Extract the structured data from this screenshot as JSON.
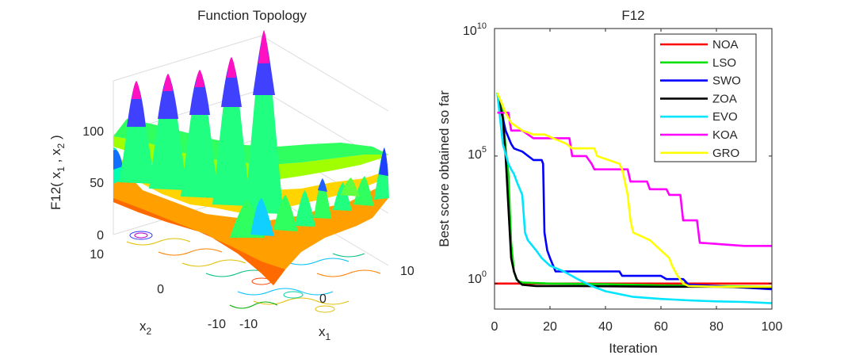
{
  "chart_data": [
    {
      "type": "surface",
      "title": "Function Topology",
      "xlabel": "x",
      "xlabel_sub": "1",
      "ylabel": "x",
      "ylabel_sub": "2",
      "zlabel": "F12( x , x )",
      "zlabel_sub1": "1",
      "zlabel_sub2": "2",
      "x_ticks": [
        "-10",
        "0",
        "10"
      ],
      "y_ticks": [
        "10",
        "0",
        "-10"
      ],
      "z_ticks": [
        "0",
        "50",
        "100"
      ],
      "xlim": [
        -10,
        10
      ],
      "ylim": [
        -10,
        10
      ],
      "zlim": [
        0,
        150
      ],
      "colormap": "hsv",
      "contour_projection": true
    },
    {
      "type": "line",
      "title": "F12",
      "xlabel": "Iteration",
      "ylabel": "Best score obtained so far",
      "yscale": "log",
      "xlim": [
        0,
        100
      ],
      "ylim": [
        0.1,
        10000000000
      ],
      "x_ticks": [
        "0",
        "20",
        "40",
        "60",
        "80",
        "100"
      ],
      "y_ticks": [
        {
          "base": "10",
          "exp": "0",
          "value": 1
        },
        {
          "base": "10",
          "exp": "5",
          "value": 100000
        },
        {
          "base": "10",
          "exp": "10",
          "value": 10000000000
        }
      ],
      "legend_position": "top-right",
      "series": [
        {
          "name": "NOA",
          "color": "#ff0000",
          "x": [
            0,
            100
          ],
          "y": [
            1.0,
            1.0
          ]
        },
        {
          "name": "LSO",
          "color": "#00e000",
          "x": [
            1,
            3,
            4,
            5,
            6,
            7,
            8,
            9,
            10,
            20,
            40,
            60,
            80,
            100
          ],
          "y": [
            30000000,
            5000000,
            200000,
            20000,
            40,
            3,
            1.4,
            1.2,
            1.1,
            1.0,
            0.95,
            0.85,
            0.8,
            0.75
          ]
        },
        {
          "name": "SWO",
          "color": "#0000ff",
          "x": [
            1,
            4,
            6,
            7,
            8,
            10,
            14,
            15,
            17,
            17.5,
            18,
            19,
            20,
            22,
            40,
            45,
            46,
            60,
            62,
            68,
            70,
            80,
            100
          ],
          "y": [
            30000000,
            1000000,
            300000,
            200000,
            180000,
            150000,
            70000,
            70000,
            70000,
            50000,
            100,
            20,
            10,
            3,
            3,
            3,
            2,
            2,
            1.5,
            1.5,
            0.9,
            0.8,
            0.6
          ]
        },
        {
          "name": "ZOA",
          "color": "#000000",
          "x": [
            1,
            3,
            4,
            5,
            6,
            7,
            8,
            9,
            10,
            15,
            30,
            60,
            80,
            100
          ],
          "y": [
            30000000,
            3000000,
            100000,
            1000,
            10,
            3,
            1.5,
            1.1,
            0.9,
            0.8,
            0.8,
            0.75,
            0.75,
            0.7
          ]
        },
        {
          "name": "EVO",
          "color": "#00e5ff",
          "x": [
            1,
            3,
            5,
            6,
            7,
            8,
            10,
            11,
            12,
            15,
            17,
            20,
            25,
            30,
            35,
            40,
            50,
            60,
            70,
            80,
            90,
            100
          ],
          "y": [
            30000000,
            300000,
            50000,
            30000,
            20000,
            10000,
            3000,
            100,
            50,
            20,
            10,
            5,
            3,
            1.5,
            0.8,
            0.5,
            0.3,
            0.25,
            0.22,
            0.2,
            0.19,
            0.17
          ]
        },
        {
          "name": "KOA",
          "color": "#ff00ff",
          "x": [
            1,
            5,
            6,
            10,
            14,
            18,
            27,
            28,
            33,
            35,
            36,
            48,
            49,
            55,
            56,
            62,
            63,
            67,
            68,
            73,
            74,
            90,
            100
          ],
          "y": [
            5000000,
            5000000,
            1000000,
            1000000,
            500000,
            500000,
            500000,
            100000,
            100000,
            50000,
            30000,
            30000,
            10000,
            10000,
            5000,
            5000,
            3000,
            3000,
            300,
            300,
            40,
            30,
            30
          ]
        },
        {
          "name": "GRO",
          "color": "#ffff00",
          "x": [
            1,
            4,
            6,
            10,
            14,
            18,
            26,
            28,
            36,
            37,
            45,
            46,
            47,
            48,
            49,
            50,
            56,
            60,
            63,
            64,
            66,
            68,
            70,
            80,
            100
          ],
          "y": [
            30000000,
            5000000,
            2000000,
            1000000,
            700000,
            700000,
            300000,
            200000,
            200000,
            100000,
            50000,
            30000,
            10000,
            3000,
            300,
            100,
            50,
            20,
            10,
            5,
            2,
            1,
            0.8,
            0.75,
            0.75
          ]
        }
      ]
    }
  ]
}
